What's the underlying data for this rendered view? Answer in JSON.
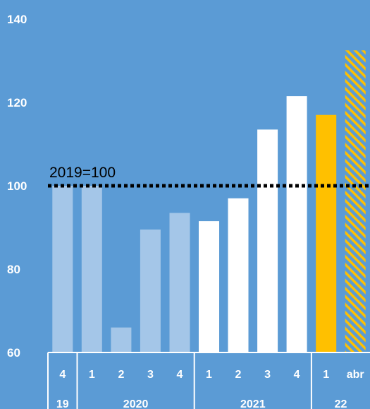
{
  "chart_data": {
    "type": "bar",
    "title": "",
    "xlabel": "",
    "ylabel": "",
    "ylim": [
      60,
      140
    ],
    "yticks": [
      60,
      80,
      100,
      120,
      140
    ],
    "categories": [
      "4",
      "1",
      "2",
      "3",
      "4",
      "1",
      "2",
      "3",
      "4",
      "1",
      "abr"
    ],
    "year_groups": [
      {
        "label": "19",
        "count": 1
      },
      {
        "label": "2020",
        "count": 4
      },
      {
        "label": "2021",
        "count": 4
      },
      {
        "label": "22",
        "count": 2
      }
    ],
    "values": [
      100,
      100,
      66,
      89.5,
      93.5,
      91.5,
      97,
      113.5,
      121.5,
      117,
      132.5
    ],
    "bar_styles": [
      "light",
      "light",
      "light",
      "light",
      "light",
      "white",
      "white",
      "white",
      "white",
      "gold",
      "hatched"
    ],
    "reference_line": {
      "value": 100,
      "label": "2019=100"
    },
    "grid": false,
    "colors": {
      "background": "#5b9bd5",
      "light": "#a4c6e8",
      "white": "#ffffff",
      "gold": "#ffc000",
      "hatch": "#ffc000",
      "axis": "#ffffff",
      "reference": "#000000"
    }
  }
}
